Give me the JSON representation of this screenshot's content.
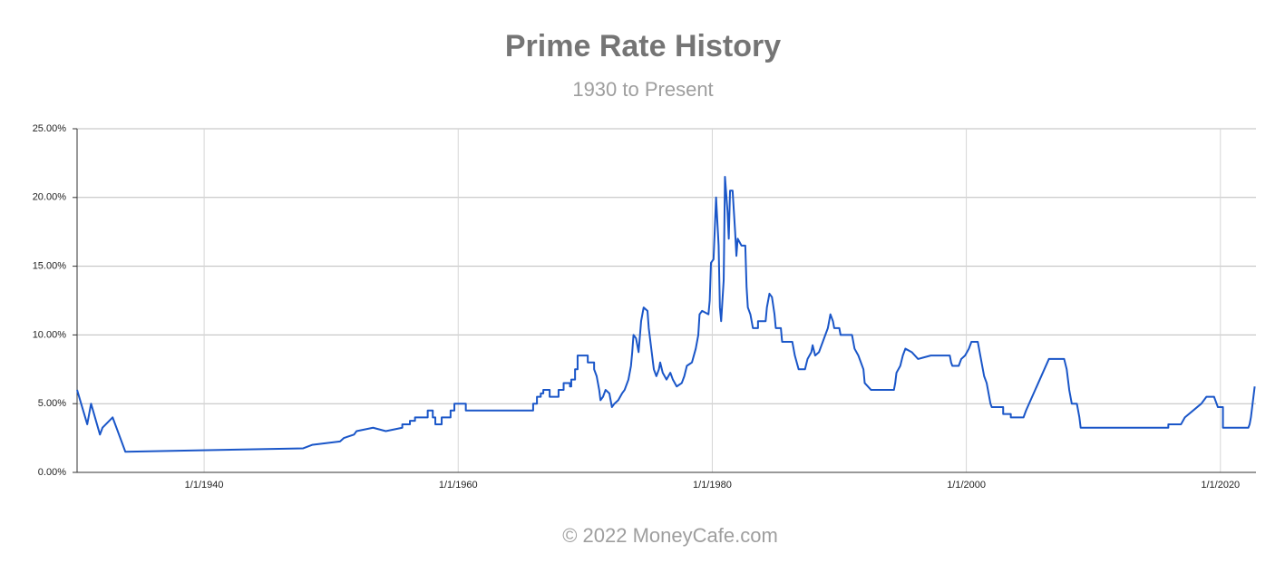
{
  "chart_data": {
    "type": "line",
    "title": "Prime Rate History",
    "subtitle": "1930 to Present",
    "footer": "© 2022 MoneyCafe.com",
    "color": "#1a56c8",
    "grid": true,
    "xlim": [
      1930,
      2022.8
    ],
    "xticks": [
      {
        "value": 1940,
        "label": "1/1/1940"
      },
      {
        "value": 1960,
        "label": "1/1/1960"
      },
      {
        "value": 1980,
        "label": "1/1/1980"
      },
      {
        "value": 2000,
        "label": "1/1/2000"
      },
      {
        "value": 2020,
        "label": "1/1/2020"
      }
    ],
    "ylim": [
      0,
      25
    ],
    "yticks": [
      {
        "value": 0,
        "label": "0.00%"
      },
      {
        "value": 5,
        "label": "5.00%"
      },
      {
        "value": 10,
        "label": "10.00%"
      },
      {
        "value": 15,
        "label": "15.00%"
      },
      {
        "value": 20,
        "label": "20.00%"
      },
      {
        "value": 25,
        "label": "25.00%"
      }
    ],
    "x": [
      1930.0,
      1930.8,
      1931.1,
      1931.8,
      1932.0,
      1932.8,
      1933.8,
      1947.8,
      1948.5,
      1950.7,
      1951.0,
      1951.8,
      1952.0,
      1953.3,
      1954.3,
      1955.6,
      1955.6,
      1956.2,
      1956.2,
      1956.6,
      1956.6,
      1957.6,
      1957.6,
      1958.0,
      1958.0,
      1958.2,
      1958.2,
      1958.7,
      1958.7,
      1959.4,
      1959.4,
      1959.7,
      1959.7,
      1960.6,
      1960.6,
      1965.9,
      1965.9,
      1966.2,
      1966.2,
      1966.5,
      1966.5,
      1966.7,
      1966.7,
      1967.2,
      1967.2,
      1967.9,
      1967.9,
      1968.3,
      1968.3,
      1968.8,
      1968.8,
      1968.9,
      1968.9,
      1969.2,
      1969.2,
      1969.4,
      1969.4,
      1970.2,
      1970.2,
      1970.7,
      1970.7,
      1970.9,
      1971.1,
      1971.2,
      1971.4,
      1971.6,
      1971.9,
      1972.0,
      1972.1,
      1972.3,
      1972.6,
      1972.9,
      1973.1,
      1973.4,
      1973.6,
      1973.7,
      1973.8,
      1974.0,
      1974.2,
      1974.4,
      1974.6,
      1974.9,
      1975.0,
      1975.2,
      1975.4,
      1975.6,
      1975.8,
      1975.9,
      1976.1,
      1976.4,
      1976.7,
      1976.9,
      1977.2,
      1977.6,
      1977.8,
      1978.0,
      1978.4,
      1978.7,
      1978.9,
      1979.0,
      1979.2,
      1979.7,
      1979.8,
      1979.9,
      1980.1,
      1980.3,
      1980.5,
      1980.6,
      1980.7,
      1980.9,
      1981.0,
      1981.2,
      1981.3,
      1981.4,
      1981.6,
      1981.7,
      1981.8,
      1981.9,
      1982.0,
      1982.3,
      1982.6,
      1982.7,
      1982.8,
      1983.0,
      1983.2,
      1983.6,
      1983.6,
      1984.2,
      1984.3,
      1984.5,
      1984.7,
      1984.9,
      1985.0,
      1985.4,
      1985.5,
      1986.3,
      1986.5,
      1986.8,
      1987.3,
      1987.5,
      1987.8,
      1987.9,
      1988.1,
      1988.4,
      1988.7,
      1988.9,
      1989.1,
      1989.3,
      1989.5,
      1989.6,
      1990.0,
      1990.1,
      1991.0,
      1991.2,
      1991.5,
      1991.9,
      1992.0,
      1992.5,
      1994.3,
      1994.4,
      1994.5,
      1994.8,
      1995.0,
      1995.2,
      1995.7,
      1996.2,
      1997.2,
      1998.7,
      1998.8,
      1998.9,
      1999.4,
      1999.6,
      1999.9,
      2000.2,
      2000.4,
      2000.9,
      2001.1,
      2001.4,
      2001.6,
      2001.9,
      2002.0,
      2002.9,
      2002.9,
      2003.5,
      2003.5,
      2004.5,
      2004.7,
      2006.5,
      2007.7,
      2007.9,
      2008.1,
      2008.3,
      2008.7,
      2008.9,
      2009.0,
      2015.9,
      2015.9,
      2016.9,
      2017.2,
      2018.5,
      2018.9,
      2019.5,
      2019.7,
      2019.8,
      2020.2,
      2020.2,
      2022.2,
      2022.3,
      2022.4,
      2022.5,
      2022.6,
      2022.7
    ],
    "values": [
      6.0,
      3.5,
      5.0,
      2.75,
      3.25,
      4.0,
      1.5,
      1.75,
      2.0,
      2.25,
      2.5,
      2.75,
      3.0,
      3.25,
      3.0,
      3.25,
      3.5,
      3.5,
      3.75,
      3.75,
      4.0,
      4.0,
      4.5,
      4.5,
      4.0,
      4.0,
      3.5,
      3.5,
      4.0,
      4.0,
      4.5,
      4.5,
      5.0,
      5.0,
      4.5,
      4.5,
      5.0,
      5.0,
      5.5,
      5.5,
      5.75,
      5.75,
      6.0,
      6.0,
      5.5,
      5.5,
      6.0,
      6.0,
      6.5,
      6.5,
      6.25,
      6.25,
      6.75,
      6.75,
      7.5,
      7.5,
      8.5,
      8.5,
      8.0,
      8.0,
      7.5,
      7.0,
      6.0,
      5.25,
      5.5,
      6.0,
      5.75,
      5.25,
      4.75,
      5.0,
      5.25,
      5.75,
      6.0,
      6.75,
      7.75,
      8.75,
      10.0,
      9.75,
      8.75,
      11.0,
      12.0,
      11.75,
      10.5,
      9.0,
      7.5,
      7.0,
      7.5,
      8.0,
      7.25,
      6.75,
      7.25,
      6.75,
      6.25,
      6.5,
      7.0,
      7.75,
      8.0,
      9.0,
      10.0,
      11.5,
      11.75,
      11.5,
      12.5,
      15.25,
      15.5,
      20.0,
      16.5,
      12.0,
      11.0,
      14.0,
      21.5,
      19.0,
      17.0,
      20.5,
      20.5,
      19.0,
      17.5,
      15.75,
      17.0,
      16.5,
      16.5,
      13.5,
      12.0,
      11.5,
      10.5,
      10.5,
      11.0,
      11.0,
      12.0,
      13.0,
      12.75,
      11.5,
      10.5,
      10.5,
      9.5,
      9.5,
      8.5,
      7.5,
      7.5,
      8.25,
      8.75,
      9.25,
      8.5,
      8.75,
      9.5,
      10.0,
      10.5,
      11.5,
      11.0,
      10.5,
      10.5,
      10.0,
      10.0,
      9.0,
      8.5,
      7.5,
      6.5,
      6.0,
      6.0,
      6.5,
      7.25,
      7.75,
      8.5,
      9.0,
      8.75,
      8.25,
      8.5,
      8.5,
      8.0,
      7.75,
      7.75,
      8.25,
      8.5,
      9.0,
      9.5,
      9.5,
      8.5,
      7.0,
      6.5,
      5.0,
      4.75,
      4.75,
      4.25,
      4.25,
      4.0,
      4.0,
      4.5,
      8.25,
      8.25,
      7.5,
      6.0,
      5.0,
      5.0,
      4.0,
      3.25,
      3.25,
      3.5,
      3.5,
      4.0,
      5.0,
      5.5,
      5.5,
      5.0,
      4.75,
      4.75,
      3.25,
      3.25,
      3.5,
      4.0,
      4.75,
      5.5,
      6.25
    ]
  }
}
